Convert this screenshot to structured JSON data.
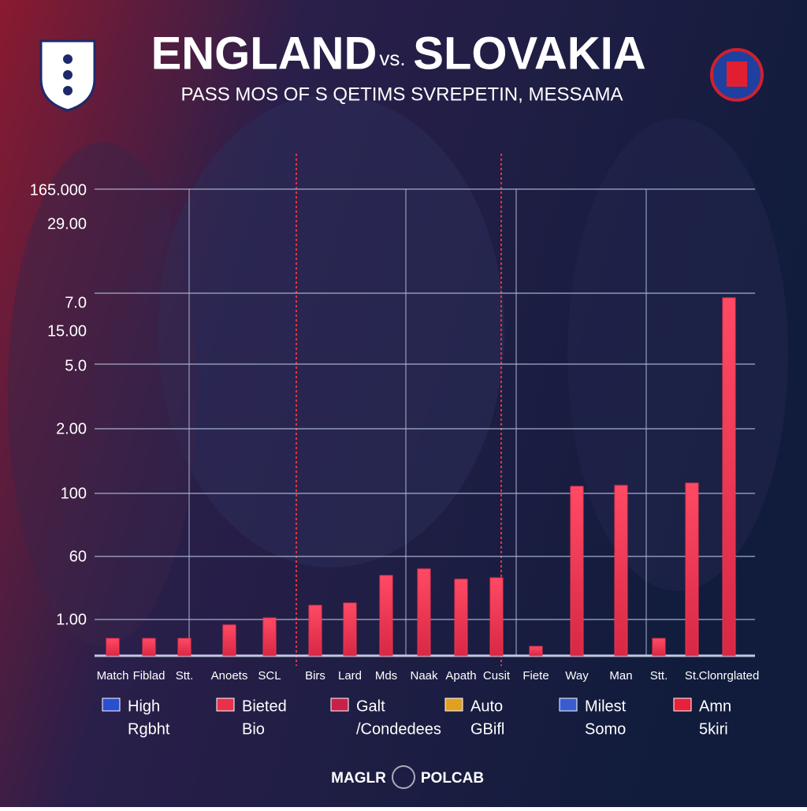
{
  "chart_data": {
    "type": "bar",
    "title_left": "ENGLAND",
    "title_mid": "vs.",
    "title_right": "SLOVAKIA",
    "subtitle": "PASS MOS OF S QETIMS SVREPETIN, MESSAMA",
    "y_labels": [
      "165.000",
      "29.00",
      "7.0",
      "15.00",
      "5.0",
      "2.00",
      "100",
      "60",
      "1.00"
    ],
    "categories": [
      "Match",
      "Fiblad",
      "Stt.",
      "Anoets",
      "SCL",
      "Birs",
      "Lard",
      "Mds",
      "Naak",
      "Apath",
      "Cusit",
      "Fiete",
      "Way",
      "Man",
      "Stt.",
      "St.",
      "Clonrglated"
    ],
    "values": [
      3.7,
      3.7,
      3.7,
      6.6,
      8.1,
      10.8,
      11.3,
      17.2,
      18.6,
      16.4,
      16.7,
      2.0,
      36.3,
      36.5,
      3.7,
      37.0,
      76.7
    ],
    "color": "#f0344f",
    "ylim": [
      0,
      100
    ],
    "legend": [
      {
        "name": "High",
        "sub": "Rgbht",
        "color": "#2a4fd0"
      },
      {
        "name": "Bieted",
        "sub": "Bio",
        "color": "#e8324a"
      },
      {
        "name": "Galt",
        "sub": "/Condedees",
        "color": "#c9204a"
      },
      {
        "name": "Auto",
        "sub": "GBifl",
        "color": "#e0a020"
      },
      {
        "name": "Milest",
        "sub": "Somo",
        "color": "#3a5cd0"
      },
      {
        "name": "Amn",
        "sub": "5kiri",
        "color": "#e8203a"
      }
    ],
    "footer_left": "MAGLR",
    "footer_right": "POLCAB"
  }
}
